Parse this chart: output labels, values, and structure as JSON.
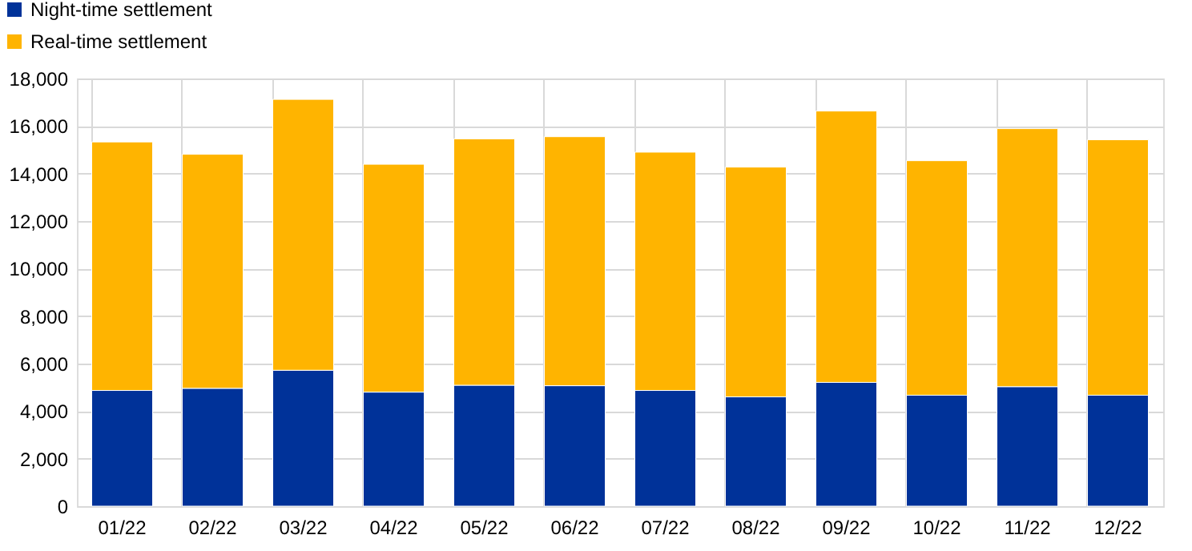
{
  "chart_data": {
    "type": "bar",
    "stacked": true,
    "categories": [
      "01/22",
      "02/22",
      "03/22",
      "04/22",
      "05/22",
      "06/22",
      "07/22",
      "08/22",
      "09/22",
      "10/22",
      "11/22",
      "12/22"
    ],
    "series": [
      {
        "name": "Night-time settlement",
        "color": "#003299",
        "values": [
          4870,
          4960,
          5720,
          4800,
          5090,
          5070,
          4870,
          4600,
          5210,
          4670,
          5030,
          4670
        ]
      },
      {
        "name": "Real-time settlement",
        "color": "#ffb400",
        "values": [
          10460,
          9850,
          11400,
          9590,
          10370,
          10480,
          10030,
          9670,
          11420,
          9870,
          10860,
          10750
        ]
      }
    ],
    "ylim": [
      0,
      18000
    ],
    "yticks": [
      0,
      {
        "value": 2000,
        "label": "2,000"
      },
      {
        "value": 4000,
        "label": "4,000"
      },
      {
        "value": 6000,
        "label": "6,000"
      },
      {
        "value": 8000,
        "label": "8,000"
      },
      {
        "value": 10000,
        "label": "10,000"
      },
      {
        "value": 12000,
        "label": "12,000"
      },
      {
        "value": 14000,
        "label": "14,000"
      },
      {
        "value": 16000,
        "label": "16,000"
      },
      {
        "value": 18000,
        "label": "18,000"
      }
    ],
    "grid": true,
    "legend": "top left"
  }
}
